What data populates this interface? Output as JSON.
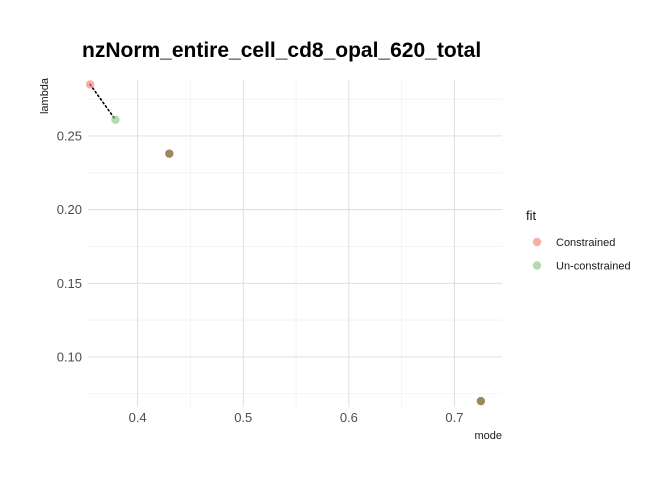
{
  "chart_data": {
    "type": "scatter",
    "title": "nzNorm_entire_cell_cd8_opal_620_total",
    "xlabel": "mode",
    "ylabel": "lambda",
    "xlim": [
      0.353,
      0.745
    ],
    "ylim": [
      0.066,
      0.288
    ],
    "x_ticks": [
      0.4,
      0.5,
      0.6,
      0.7
    ],
    "x_tick_labels": [
      "0.4",
      "0.5",
      "0.6",
      "0.7"
    ],
    "y_ticks": [
      0.1,
      0.15,
      0.2,
      0.25
    ],
    "y_tick_labels": [
      "0.10",
      "0.15",
      "0.20",
      "0.25"
    ],
    "grid": true,
    "legend": {
      "title": "fit",
      "position": "right",
      "entries": [
        {
          "label": "Constrained",
          "color": "#F8766D"
        },
        {
          "label": "Un-constrained",
          "color": "#7CC47C"
        }
      ]
    },
    "series": [
      {
        "name": "Constrained",
        "color": "#F8766D",
        "points": [
          {
            "x": 0.355,
            "y": 0.285
          }
        ]
      },
      {
        "name": "Un-constrained",
        "color": "#7CC47C",
        "points": [
          {
            "x": 0.379,
            "y": 0.261
          }
        ]
      }
    ],
    "overlap_points": {
      "color": "#8B6A3E",
      "points": [
        {
          "x": 0.43,
          "y": 0.238
        },
        {
          "x": 0.725,
          "y": 0.07
        }
      ]
    },
    "connector": {
      "from": {
        "x": 0.355,
        "y": 0.285
      },
      "to": {
        "x": 0.379,
        "y": 0.261
      },
      "style": "dotted"
    }
  }
}
